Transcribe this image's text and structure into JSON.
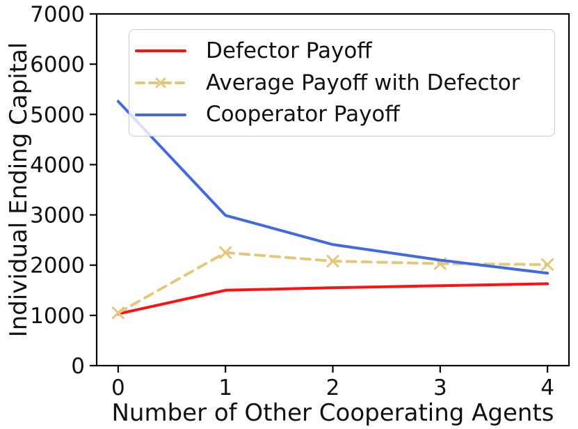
{
  "figure": {
    "background_color": "#ffffff",
    "axis_color": "#000000",
    "text_color": "#111111"
  },
  "chart_data": {
    "type": "line",
    "title": "",
    "xlabel": "Number of Other Cooperating Agents",
    "ylabel": "Individual Ending Capital",
    "x": [
      0,
      1,
      2,
      3,
      4
    ],
    "xtick_labels": [
      "0",
      "1",
      "2",
      "3",
      "4"
    ],
    "ytick_values": [
      0,
      1000,
      2000,
      3000,
      4000,
      5000,
      6000,
      7000
    ],
    "ytick_labels": [
      "0",
      "1000",
      "2000",
      "3000",
      "4000",
      "5000",
      "6000",
      "7000"
    ],
    "xlim": [
      -0.2,
      4.2
    ],
    "ylim": [
      0,
      7000
    ],
    "grid": false,
    "legend": {
      "position": "upper left",
      "border_color": "#cccccc",
      "background": "rgba(255,255,255,0.8)"
    },
    "series": [
      {
        "name": "Defector Payoff",
        "color": "#ff1111",
        "style": "solid",
        "marker": "none",
        "values": [
          1030,
          1500,
          1550,
          1590,
          1630
        ]
      },
      {
        "name": "Average Payoff with Defector",
        "color": "#e3c87b",
        "style": "dashed",
        "marker": "x",
        "values": [
          1050,
          2250,
          2080,
          2030,
          2010
        ]
      },
      {
        "name": "Cooperator Payoff",
        "color": "#4169e1",
        "style": "solid",
        "marker": "none",
        "values": [
          5260,
          2990,
          2410,
          2100,
          1840
        ]
      }
    ]
  }
}
